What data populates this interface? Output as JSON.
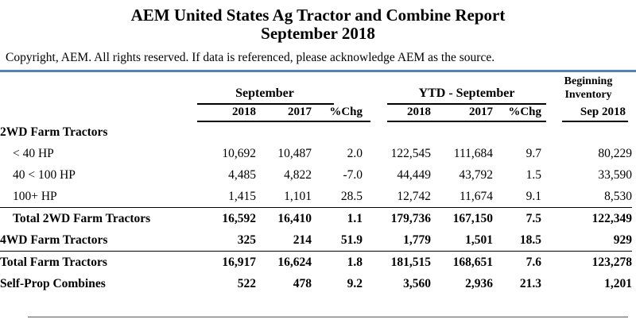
{
  "report": {
    "title_line1": "AEM United States Ag Tractor and Combine Report",
    "title_line2": "September 2018",
    "copyright": "Copyright, AEM. All rights reserved. If data is referenced, please acknowledge AEM as the source."
  },
  "headers": {
    "group_month": "September",
    "group_ytd": "YTD - September",
    "beginning_1": "Beginning",
    "beginning_2": "Inventory",
    "columns": [
      "2018",
      "2017",
      "%Chg",
      "2018",
      "2017",
      "%Chg",
      "Sep 2018"
    ]
  },
  "rows": [
    {
      "label": "2WD Farm Tractors",
      "style": "section",
      "values": [
        "",
        "",
        "",
        "",
        "",
        "",
        ""
      ]
    },
    {
      "label": "< 40 HP",
      "style": "sub",
      "values": [
        "10,692",
        "10,487",
        "2.0",
        "122,545",
        "111,684",
        "9.7",
        "80,229"
      ]
    },
    {
      "label": "40 < 100 HP",
      "style": "sub",
      "values": [
        "4,485",
        "4,822",
        "-7.0",
        "44,449",
        "43,792",
        "1.5",
        "33,590"
      ]
    },
    {
      "label": "100+ HP",
      "style": "sub",
      "values": [
        "1,415",
        "1,101",
        "28.5",
        "12,742",
        "11,674",
        "9.1",
        "8,530"
      ]
    },
    {
      "label": "Total 2WD Farm Tractors",
      "style": "total",
      "values": [
        "16,592",
        "16,410",
        "1.1",
        "179,736",
        "167,150",
        "7.5",
        "122,349"
      ]
    },
    {
      "label": "4WD Farm Tractors",
      "style": "bold",
      "values": [
        "325",
        "214",
        "51.9",
        "1,779",
        "1,501",
        "18.5",
        "929"
      ]
    },
    {
      "label": "Total Farm Tractors",
      "style": "bold-top",
      "values": [
        "16,917",
        "16,624",
        "1.8",
        "181,515",
        "168,651",
        "7.6",
        "123,278"
      ]
    },
    {
      "label": "Self-Prop Combines",
      "style": "bold",
      "values": [
        "522",
        "478",
        "9.2",
        "3,560",
        "2,936",
        "21.3",
        "1,201"
      ]
    }
  ],
  "colors": {
    "accent_rule": "#4f81bd"
  }
}
